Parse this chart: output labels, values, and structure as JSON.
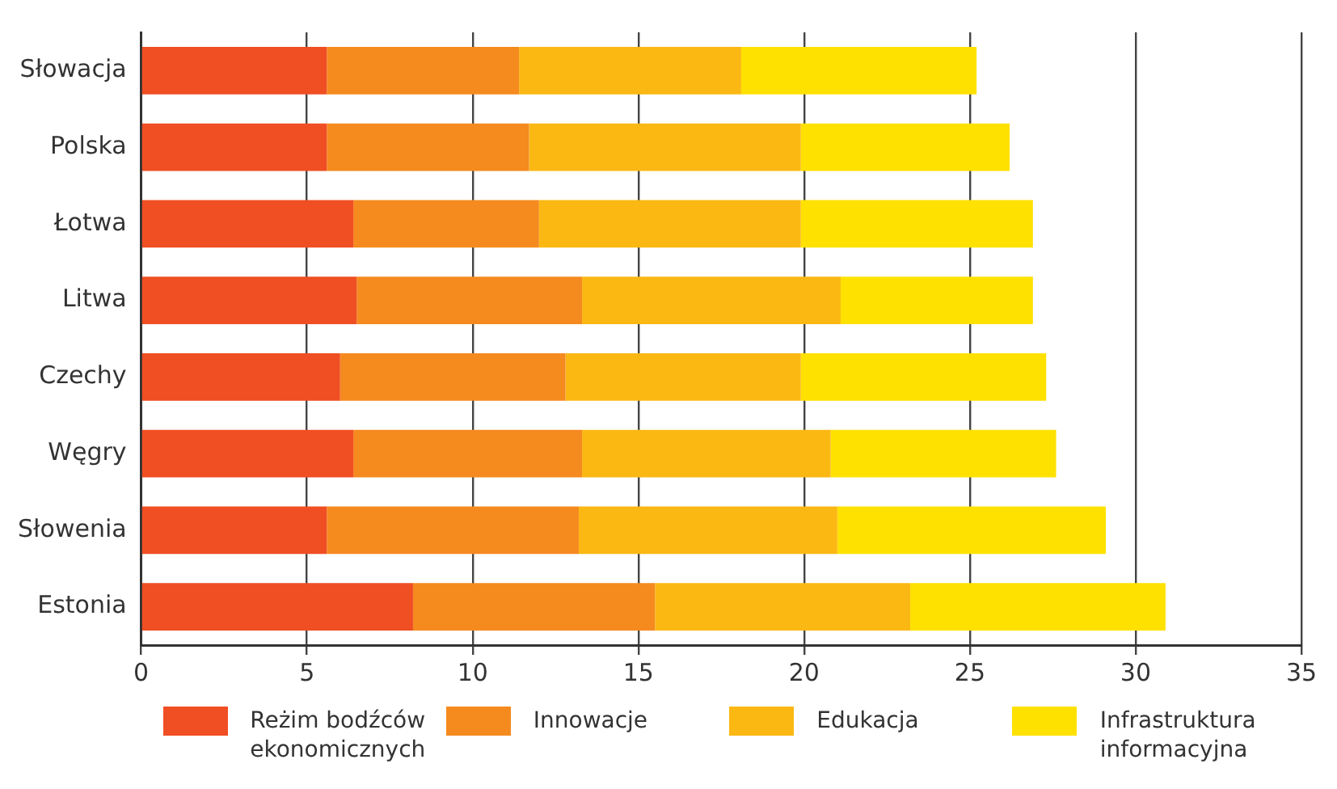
{
  "chart_data": {
    "type": "bar",
    "orientation": "horizontal",
    "stacked": true,
    "categories": [
      "Słowacja",
      "Polska",
      "Łotwa",
      "Litwa",
      "Czechy",
      "Węgry",
      "Słowenia",
      "Estonia"
    ],
    "series": [
      {
        "name": "Reżim bodźców ekonomicznych",
        "color": "#f04e23",
        "values": [
          5.6,
          5.6,
          6.4,
          6.5,
          6.0,
          6.4,
          5.6,
          8.2
        ]
      },
      {
        "name": "Innowacje",
        "color": "#f58a1f",
        "values": [
          5.8,
          6.1,
          5.6,
          6.8,
          6.8,
          6.9,
          7.6,
          7.3
        ]
      },
      {
        "name": "Edukacja",
        "color": "#fbb813",
        "values": [
          6.7,
          8.2,
          7.9,
          7.8,
          7.1,
          7.5,
          7.8,
          7.7
        ]
      },
      {
        "name": "Infrastruktura informacyjna",
        "color": "#ffe100",
        "values": [
          7.1,
          6.3,
          7.0,
          5.8,
          7.4,
          6.8,
          8.1,
          7.7
        ]
      }
    ],
    "xlim": [
      0,
      35
    ],
    "xticks": [
      0,
      5,
      10,
      15,
      20,
      25,
      30,
      35
    ],
    "grid": "x",
    "legend": "bottom"
  }
}
